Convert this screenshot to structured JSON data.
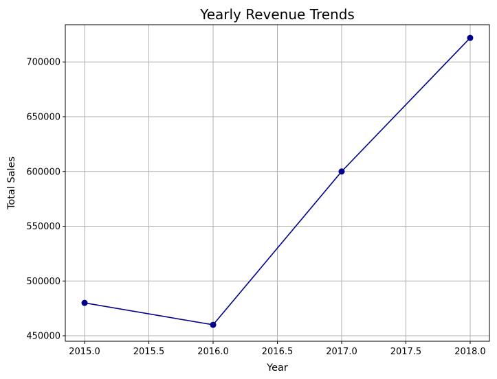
{
  "chart_data": {
    "type": "line",
    "title": "Yearly Revenue Trends",
    "xlabel": "Year",
    "ylabel": "Total Sales",
    "x": [
      2015,
      2016,
      2017,
      2018
    ],
    "series": [
      {
        "values": [
          480000,
          460000,
          600000,
          722000
        ],
        "color": "#00008b",
        "marker": "circle"
      }
    ],
    "xlim": [
      2014.85,
      2018.15
    ],
    "ylim": [
      445000,
      734000
    ],
    "xticks": [
      2015.0,
      2015.5,
      2016.0,
      2016.5,
      2017.0,
      2017.5,
      2018.0
    ],
    "xtick_labels": [
      "2015.0",
      "2015.5",
      "2016.0",
      "2016.5",
      "2017.0",
      "2017.5",
      "2018.0"
    ],
    "yticks": [
      450000,
      500000,
      550000,
      600000,
      650000,
      700000
    ],
    "ytick_labels": [
      "450000",
      "500000",
      "550000",
      "600000",
      "650000",
      "700000"
    ],
    "grid": true,
    "grid_color": "#b0b0b0"
  }
}
